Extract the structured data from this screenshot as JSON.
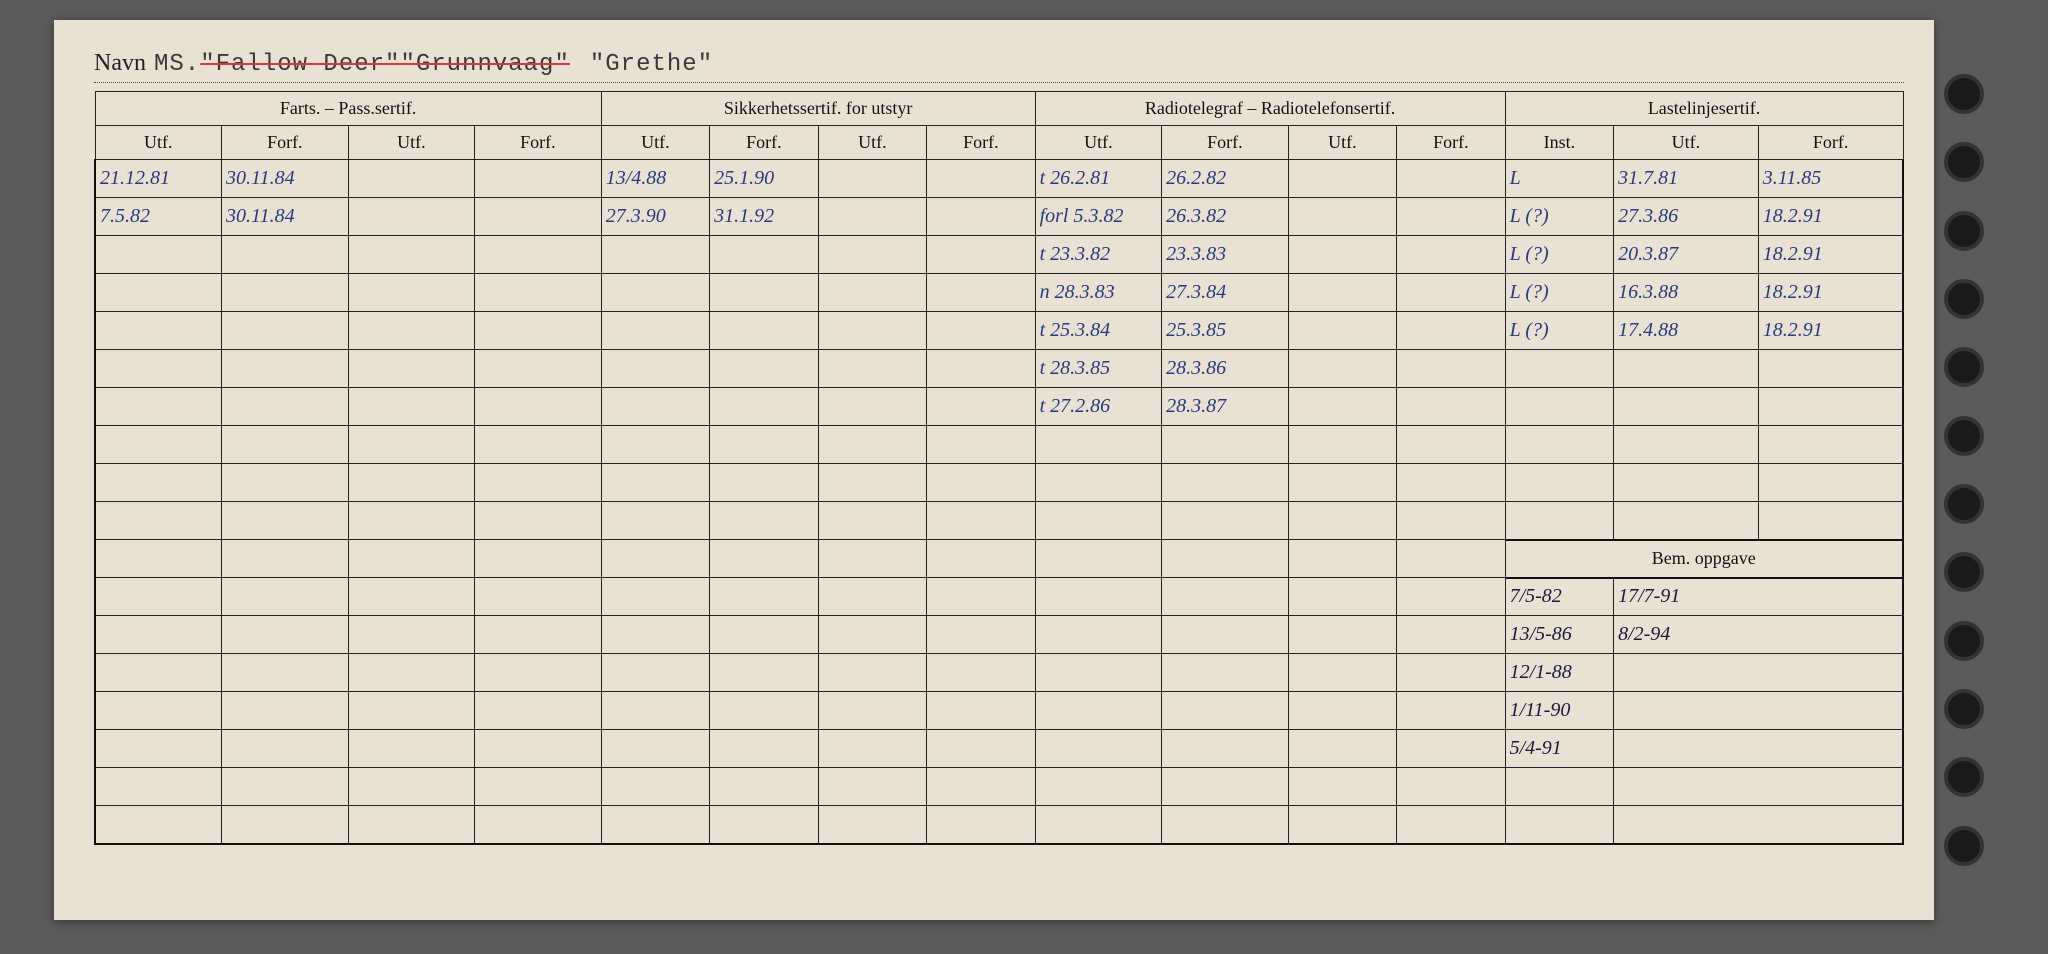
{
  "title": {
    "label": "Navn",
    "prefix": "MS.",
    "name1": "\"Fallow Deer\"",
    "name2": "\"Grunnvaag\"",
    "name3": "\"Grethe\""
  },
  "groups": {
    "farts": "Farts. – Pass.sertif.",
    "sikkerhet": "Sikkerhetssertif. for utstyr",
    "radio": "Radiotelegraf – Radiotelefonsertif.",
    "laste": "Lastelinjesertif.",
    "bem": "Bem. oppgave"
  },
  "subheaders": {
    "utf": "Utf.",
    "forf": "Forf.",
    "inst": "Inst."
  },
  "rows": [
    {
      "farts_utf1": "21.12.81",
      "farts_forf1": "30.11.84",
      "sik_utf1": "13/4.88",
      "sik_forf1": "25.1.90",
      "radio_utf1": "t 26.2.81",
      "radio_forf1": "26.2.82",
      "laste_inst": "L",
      "laste_utf": "31.7.81",
      "laste_forf": "3.11.85"
    },
    {
      "farts_utf1": "7.5.82",
      "farts_forf1": "30.11.84",
      "sik_utf1": "27.3.90",
      "sik_forf1": "31.1.92",
      "radio_utf1": "forl 5.3.82",
      "radio_forf1": "26.3.82",
      "laste_inst": "L (?)",
      "laste_utf": "27.3.86",
      "laste_forf": "18.2.91"
    },
    {
      "radio_utf1": "t 23.3.82",
      "radio_forf1": "23.3.83",
      "laste_inst": "L (?)",
      "laste_utf": "20.3.87",
      "laste_forf": "18.2.91"
    },
    {
      "radio_utf1": "n 28.3.83",
      "radio_forf1": "27.3.84",
      "laste_inst": "L (?)",
      "laste_utf": "16.3.88",
      "laste_forf": "18.2.91"
    },
    {
      "radio_utf1": "t 25.3.84",
      "radio_forf1": "25.3.85",
      "laste_inst": "L (?)",
      "laste_utf": "17.4.88",
      "laste_forf": "18.2.91"
    },
    {
      "radio_utf1": "t 28.3.85",
      "radio_forf1": "28.3.86"
    },
    {
      "radio_utf1": "t 27.2.86",
      "radio_forf1": "28.3.87"
    },
    {},
    {},
    {},
    {},
    {
      "bem1": "7/5-82",
      "bem2": "17/7-91"
    },
    {
      "bem1": "13/5-86",
      "bem2": "8/2-94"
    },
    {
      "bem1": "12/1-88"
    },
    {
      "bem1": "1/11-90"
    },
    {
      "bem1": "5/4-91"
    },
    {},
    {}
  ]
}
